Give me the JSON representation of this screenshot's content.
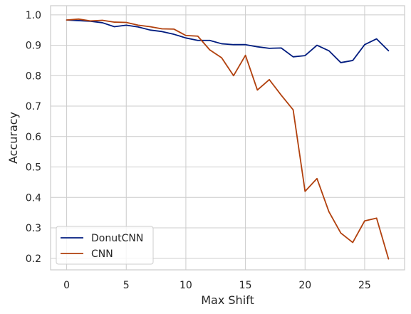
{
  "chart_data": {
    "type": "line",
    "title": "",
    "xlabel": "Max Shift",
    "ylabel": "Accuracy",
    "xlim": [
      -1.35,
      28.35
    ],
    "ylim": [
      0.162,
      1.03
    ],
    "xticks": [
      0,
      5,
      10,
      15,
      20,
      25
    ],
    "yticks": [
      0.2,
      0.3,
      0.4,
      0.5,
      0.6,
      0.7,
      0.8,
      0.9,
      1.0
    ],
    "xtick_labels": [
      "0",
      "5",
      "10",
      "15",
      "20",
      "25"
    ],
    "ytick_labels": [
      "0.2",
      "0.3",
      "0.4",
      "0.5",
      "0.6",
      "0.7",
      "0.8",
      "0.9",
      "1.0"
    ],
    "grid": true,
    "legend_position": "lower left",
    "x": [
      0,
      1,
      2,
      3,
      4,
      5,
      6,
      7,
      8,
      9,
      10,
      11,
      12,
      13,
      14,
      15,
      16,
      17,
      18,
      19,
      20,
      21,
      22,
      23,
      24,
      25,
      26,
      27
    ],
    "series": [
      {
        "name": "DonutCNN",
        "color": "#001c7f",
        "values": [
          0.983,
          0.981,
          0.979,
          0.974,
          0.961,
          0.966,
          0.96,
          0.95,
          0.945,
          0.936,
          0.924,
          0.916,
          0.916,
          0.905,
          0.902,
          0.902,
          0.895,
          0.89,
          0.891,
          0.862,
          0.866,
          0.9,
          0.882,
          0.843,
          0.85,
          0.902,
          0.921,
          0.882
        ]
      },
      {
        "name": "CNN",
        "color": "#b1400d",
        "values": [
          0.983,
          0.986,
          0.98,
          0.982,
          0.976,
          0.975,
          0.966,
          0.961,
          0.954,
          0.953,
          0.932,
          0.93,
          0.885,
          0.859,
          0.8,
          0.867,
          0.753,
          0.787,
          0.736,
          0.688,
          0.42,
          0.462,
          0.353,
          0.283,
          0.252,
          0.323,
          0.332,
          0.198
        ]
      }
    ]
  }
}
